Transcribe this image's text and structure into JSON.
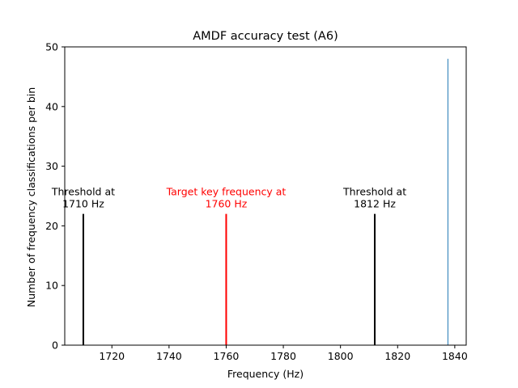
{
  "chart_data": {
    "type": "bar",
    "title": "AMDF accuracy test (A6)",
    "xlabel": "Frequency (Hz)",
    "ylabel": "Number of frequency classifications per bin",
    "xlim": [
      1703.5,
      1844.0
    ],
    "ylim": [
      0,
      50
    ],
    "x_ticks": [
      1720,
      1740,
      1760,
      1780,
      1800,
      1820,
      1840
    ],
    "y_ticks": [
      0,
      10,
      20,
      30,
      40,
      50
    ],
    "grid": false,
    "series": [
      {
        "x": [
          1837.6
        ],
        "values": [
          48
        ],
        "color": "#1f77b4"
      }
    ],
    "vlines": [
      {
        "x": 1710,
        "height": 22,
        "color": "#000000",
        "label": "Threshold at\n1710 Hz"
      },
      {
        "x": 1760,
        "height": 22,
        "color": "#ff0000",
        "label": "Target key frequency at\n1760 Hz"
      },
      {
        "x": 1812,
        "height": 22,
        "color": "#000000",
        "label": "Threshold at\n1812 Hz"
      }
    ]
  }
}
